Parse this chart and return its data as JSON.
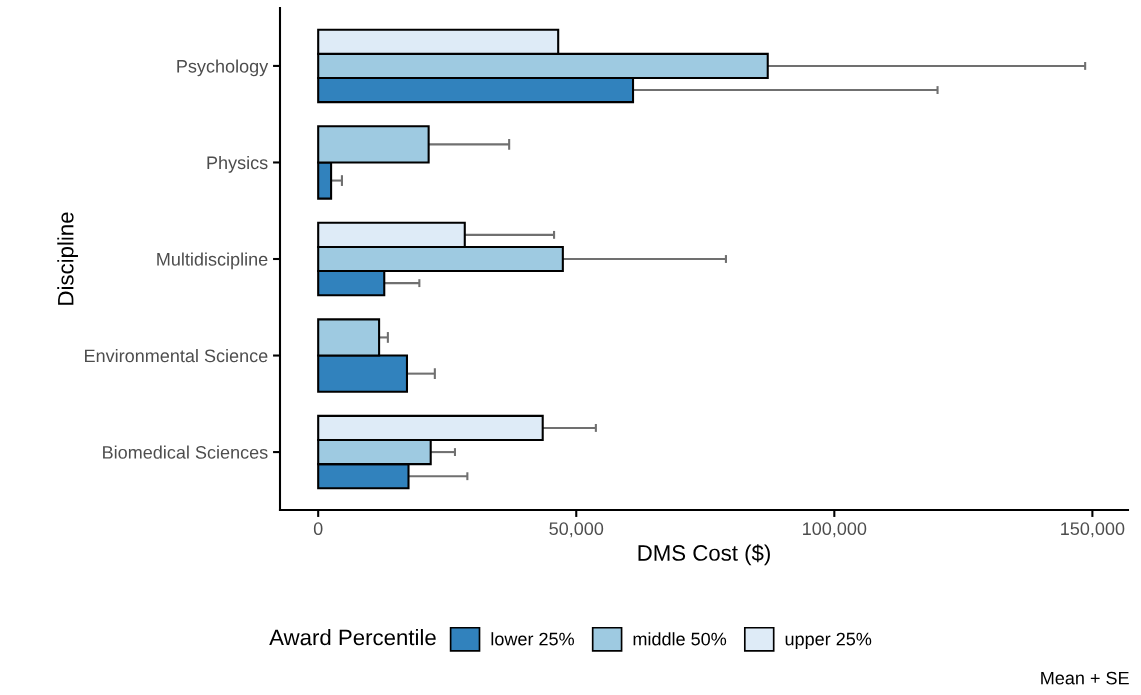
{
  "chart_data": {
    "type": "bar",
    "orientation": "horizontal",
    "xlabel": "DMS Cost ($)",
    "ylabel": "Discipline",
    "legend_title": "Award Percentile",
    "categories": [
      "Psychology",
      "Physics",
      "Multidiscipline",
      "Environmental Science",
      "Biomedical Sciences"
    ],
    "series": [
      {
        "name": "lower 25%",
        "color": "#3182bd",
        "values": [
          61000,
          2500,
          12800,
          17200,
          17500
        ],
        "errors": [
          [
            61000,
            120000
          ],
          [
            2500,
            4600
          ],
          [
            12800,
            19600
          ],
          [
            17200,
            22600
          ],
          [
            17500,
            28900
          ]
        ]
      },
      {
        "name": "middle 50%",
        "color": "#9ecae1",
        "values": [
          87100,
          21400,
          47400,
          11800,
          21800
        ],
        "errors": [
          [
            87100,
            148600
          ],
          [
            21400,
            37000
          ],
          [
            47400,
            79000
          ],
          [
            11800,
            13500
          ],
          [
            21800,
            26500
          ]
        ]
      },
      {
        "name": "upper 25%",
        "color": "#deebf7",
        "values": [
          46500,
          null,
          28400,
          null,
          43500
        ],
        "errors": [
          null,
          null,
          [
            28400,
            45700
          ],
          null,
          [
            43500,
            53800
          ]
        ]
      }
    ],
    "xlim": [
      -7400,
      156900
    ],
    "xticks": [
      {
        "value": 0,
        "label": "0"
      },
      {
        "value": 50000,
        "label": "50,000"
      },
      {
        "value": 100000,
        "label": "100,000"
      },
      {
        "value": 150000,
        "label": "150,000"
      }
    ],
    "grid": false,
    "legend": "bottom",
    "annotations": [
      "Mean + SE"
    ]
  }
}
